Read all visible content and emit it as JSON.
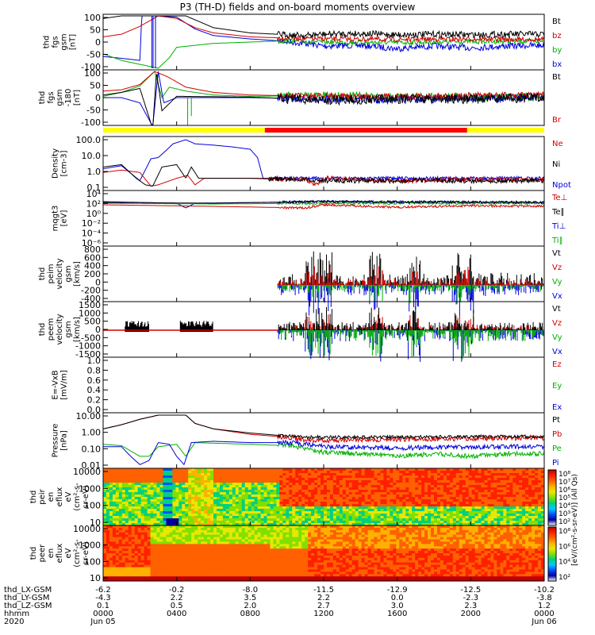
{
  "title": "P3 (TH-D) fields and on-board moments overview",
  "panels": [
    {
      "ylabel": [
        "thd",
        "fgs",
        "gsm",
        "[nT]"
      ],
      "yticks": [
        "100",
        "50",
        "0",
        "-50",
        "-100"
      ],
      "legend": [
        {
          "t": "Bt",
          "c": "#000000"
        },
        {
          "t": "bz",
          "c": "#d00000"
        },
        {
          "t": "by",
          "c": "#00b000"
        },
        {
          "t": "bx",
          "c": "#0000e0"
        }
      ]
    },
    {
      "ylabel": [
        "thd",
        "fgs",
        "gsm",
        "-180",
        "[nT]"
      ],
      "yticks": [
        "100",
        "50",
        "0",
        "-50",
        "-100"
      ],
      "legend": [
        {
          "t": "Bt",
          "c": "#000000"
        },
        {
          "t": "Br",
          "c": "#d00000"
        }
      ]
    },
    {
      "ylabel": [
        "Density",
        "[cm-3]"
      ],
      "yticks": [
        "100.0",
        "10.0",
        "1.0",
        "0.1"
      ],
      "legend": [
        {
          "t": "Ne",
          "c": "#d00000"
        },
        {
          "t": "Ni",
          "c": "#000000"
        },
        {
          "t": "Npot",
          "c": "#0000e0"
        }
      ]
    },
    {
      "ylabel": [
        "mqgt3",
        "[eV]"
      ],
      "yticks": [
        "10⁴",
        "10²",
        "10⁰",
        "10⁻²",
        "10⁻⁴",
        "10⁻⁶"
      ],
      "legend": [
        {
          "t": "Te⊥",
          "c": "#d00000"
        },
        {
          "t": "Te∥",
          "c": "#000000"
        },
        {
          "t": "Ti⊥",
          "c": "#0000e0"
        },
        {
          "t": "Ti∥",
          "c": "#00b000"
        }
      ]
    },
    {
      "ylabel": [
        "thd",
        "peim",
        "velocity",
        "gsm",
        "[km/s]"
      ],
      "yticks": [
        "800",
        "600",
        "400",
        "200",
        "0",
        "-200",
        "-400"
      ],
      "legend": [
        {
          "t": "Vt",
          "c": "#000000"
        },
        {
          "t": "Vz",
          "c": "#d00000"
        },
        {
          "t": "Vy",
          "c": "#00b000"
        },
        {
          "t": "Vx",
          "c": "#0000e0"
        }
      ]
    },
    {
      "ylabel": [
        "thd",
        "peem",
        "velocity",
        "gsm",
        "[km/s]"
      ],
      "yticks": [
        "1500",
        "1000",
        "500",
        "0",
        "-500",
        "-1000",
        "-1500"
      ],
      "legend": [
        {
          "t": "Vt",
          "c": "#000000"
        },
        {
          "t": "Vz",
          "c": "#d00000"
        },
        {
          "t": "Vy",
          "c": "#00b000"
        },
        {
          "t": "Vx",
          "c": "#0000e0"
        }
      ]
    },
    {
      "ylabel": [
        "E=-VxB",
        "[mV/m]"
      ],
      "yticks": [
        "1.0",
        "0.8",
        "0.6",
        "0.4",
        "0.2",
        "0.0"
      ],
      "legend": [
        {
          "t": "Ez",
          "c": "#d00000"
        },
        {
          "t": "Ey",
          "c": "#00b000"
        },
        {
          "t": "Ex",
          "c": "#0000e0"
        }
      ]
    },
    {
      "ylabel": [
        "Pressure",
        "[nPa]"
      ],
      "yticks": [
        "10.00",
        "1.00",
        "0.10",
        "0.01"
      ],
      "legend": [
        {
          "t": "Pt",
          "c": "#000000"
        },
        {
          "t": "Pb",
          "c": "#d00000"
        },
        {
          "t": "Pe",
          "c": "#00b000"
        },
        {
          "t": "Pi",
          "c": "#0000e0"
        }
      ]
    },
    {
      "ylabel": [
        "thd",
        "peir",
        "en",
        "eflux",
        "eV",
        "(cm²-s-",
        "sr-eV)"
      ],
      "yticks": [
        "10000",
        "1000",
        "100",
        "10"
      ],
      "legend": []
    },
    {
      "ylabel": [
        "thd",
        "peer",
        "en",
        "eflux",
        "eV",
        "(cm²-s-",
        "sr-eV)"
      ],
      "yticks": [
        "10000",
        "1000",
        "100",
        "10"
      ],
      "legend": []
    }
  ],
  "colorbar": {
    "top": [
      "10⁸",
      "10⁷",
      "10⁶",
      "10⁵",
      "10⁴",
      "10³",
      "10²"
    ],
    "bottom": [
      "10⁸",
      "10⁶",
      "10⁴",
      "10²"
    ],
    "label": "[eV/(cm²-s-sr-eV)] (All Qs)"
  },
  "bottom_rows": {
    "labels": [
      "thd_LX-GSM",
      "thd_LY-GSM",
      "thd_LZ-GSM",
      "hhmm",
      "2020"
    ],
    "columns": [
      [
        "-6.2",
        "-4.3",
        "0.1",
        "0000",
        "Jun 05"
      ],
      [
        "-0.2",
        "2.2",
        "0.5",
        "0400",
        ""
      ],
      [
        "-8.0",
        "3.5",
        "2.0",
        "0800",
        ""
      ],
      [
        "-11.5",
        "2.2",
        "2.7",
        "1200",
        ""
      ],
      [
        "-12.9",
        "0.0",
        "3.0",
        "1600",
        ""
      ],
      [
        "-12.5",
        "-2.3",
        "2.3",
        "2000",
        ""
      ],
      [
        "-10.2",
        "-3.8",
        "1.2",
        "0000",
        "Jun 06"
      ]
    ]
  },
  "chart_data": {
    "type": "line",
    "title": "P3 (TH-D) fields and on-board moments overview",
    "x_label": "hhmm",
    "x_range": [
      "2020-06-05 00:00",
      "2020-06-06 00:00"
    ],
    "x_ticks": [
      "0000",
      "0400",
      "0800",
      "1200",
      "1600",
      "2000",
      "0000"
    ],
    "grid": false,
    "approximate_series": [
      {
        "panel": "fgs gsm",
        "name": "Bt",
        "unit": "nT",
        "hours": [
          0,
          1,
          2,
          3,
          4,
          6,
          8,
          10,
          11,
          12,
          14,
          16,
          18,
          20,
          22,
          24
        ],
        "values": [
          100,
          100,
          100,
          100,
          100,
          60,
          40,
          25,
          20,
          25,
          30,
          25,
          30,
          25,
          30,
          30
        ]
      },
      {
        "panel": "fgs gsm",
        "name": "bx",
        "unit": "nT",
        "hours": [
          0,
          1,
          2,
          3,
          4,
          6,
          8,
          10,
          11,
          12,
          14,
          16,
          18,
          20,
          22,
          24
        ],
        "values": [
          -50,
          -60,
          -80,
          100,
          90,
          30,
          10,
          -5,
          -10,
          -20,
          -15,
          -25,
          -15,
          -20,
          -15,
          -15
        ]
      },
      {
        "panel": "Density",
        "name": "Ni",
        "unit": "cm-3",
        "hours": [
          0,
          1,
          2,
          3,
          4,
          5,
          6,
          8,
          10,
          11,
          12,
          14,
          16,
          18,
          20,
          22,
          24
        ],
        "values": [
          2,
          3,
          0.2,
          0.08,
          2,
          3,
          0.3,
          0.3,
          0.3,
          0.25,
          0.2,
          0.25,
          0.2,
          0.3,
          0.25,
          0.3,
          0.3
        ]
      },
      {
        "panel": "Pressure",
        "name": "Pt",
        "unit": "nPa",
        "hours": [
          0,
          1,
          2,
          3,
          4,
          6,
          8,
          10,
          11,
          12,
          14,
          16,
          18,
          20,
          22,
          24
        ],
        "values": [
          2,
          4,
          10,
          10,
          10,
          1.5,
          0.8,
          0.5,
          0.4,
          0.4,
          0.5,
          0.4,
          0.5,
          0.45,
          0.5,
          0.5
        ]
      }
    ]
  }
}
